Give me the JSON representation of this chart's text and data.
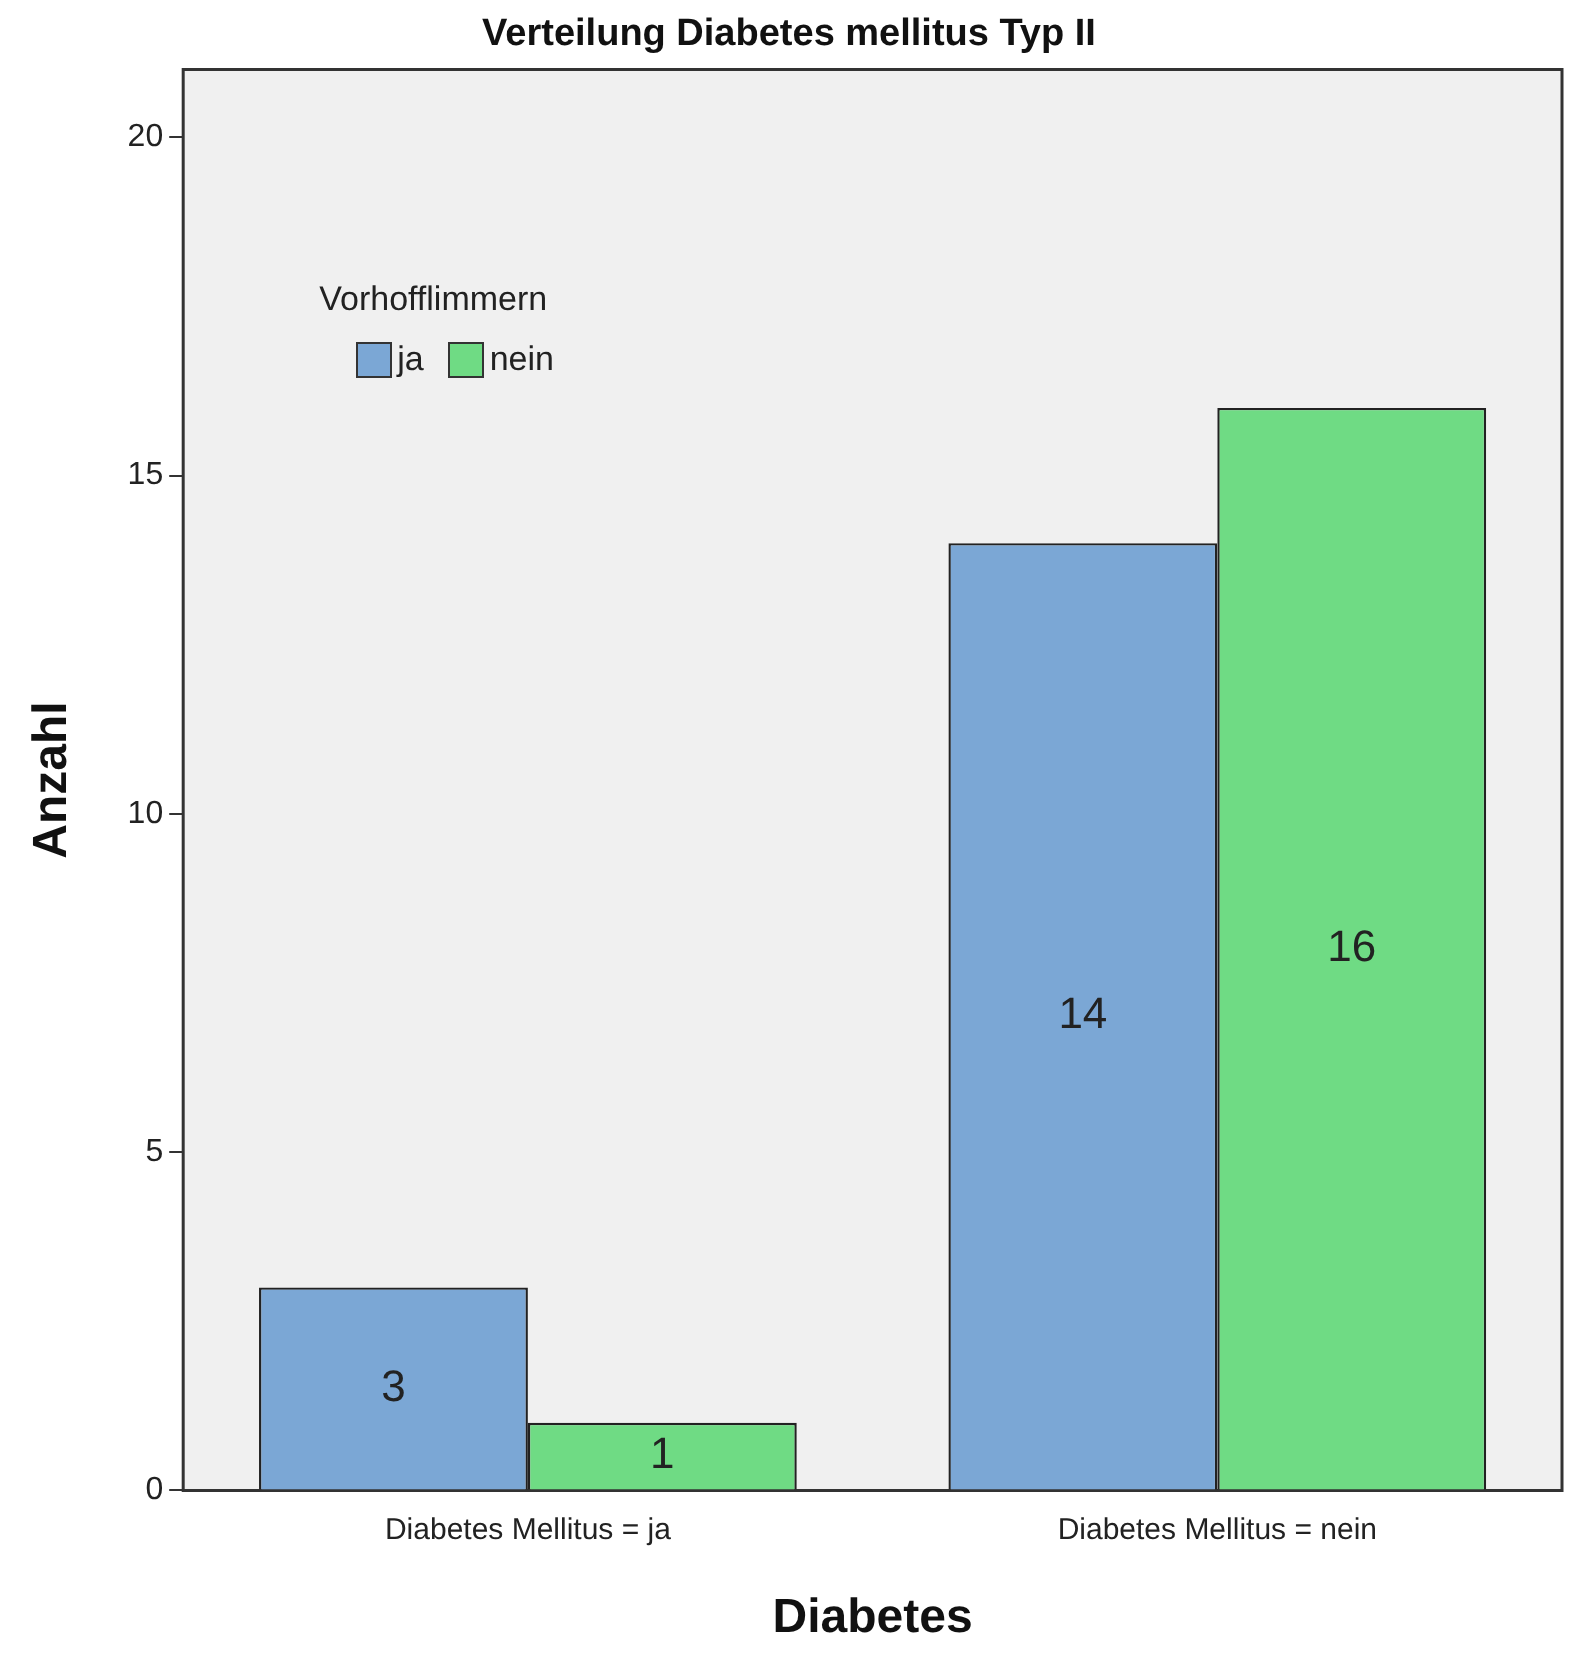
{
  "chart_data": {
    "type": "bar",
    "title": "Verteilung Diabetes mellitus Typ II",
    "xlabel": "Diabetes",
    "ylabel": "Anzahl",
    "legend_title": "Vorhofflimmern",
    "categories": [
      "Diabetes Mellitus = ja",
      "Diabetes Mellitus = nein"
    ],
    "series": [
      {
        "name": "ja",
        "color": "#7ba7d5",
        "values": [
          3,
          14
        ]
      },
      {
        "name": "nein",
        "color": "#6fdb84",
        "values": [
          1,
          16
        ]
      }
    ],
    "ylim": [
      0,
      21
    ],
    "yticks": [
      0,
      5,
      10,
      15,
      20
    ],
    "grid": false,
    "legend": "top left",
    "data_labels": true
  }
}
